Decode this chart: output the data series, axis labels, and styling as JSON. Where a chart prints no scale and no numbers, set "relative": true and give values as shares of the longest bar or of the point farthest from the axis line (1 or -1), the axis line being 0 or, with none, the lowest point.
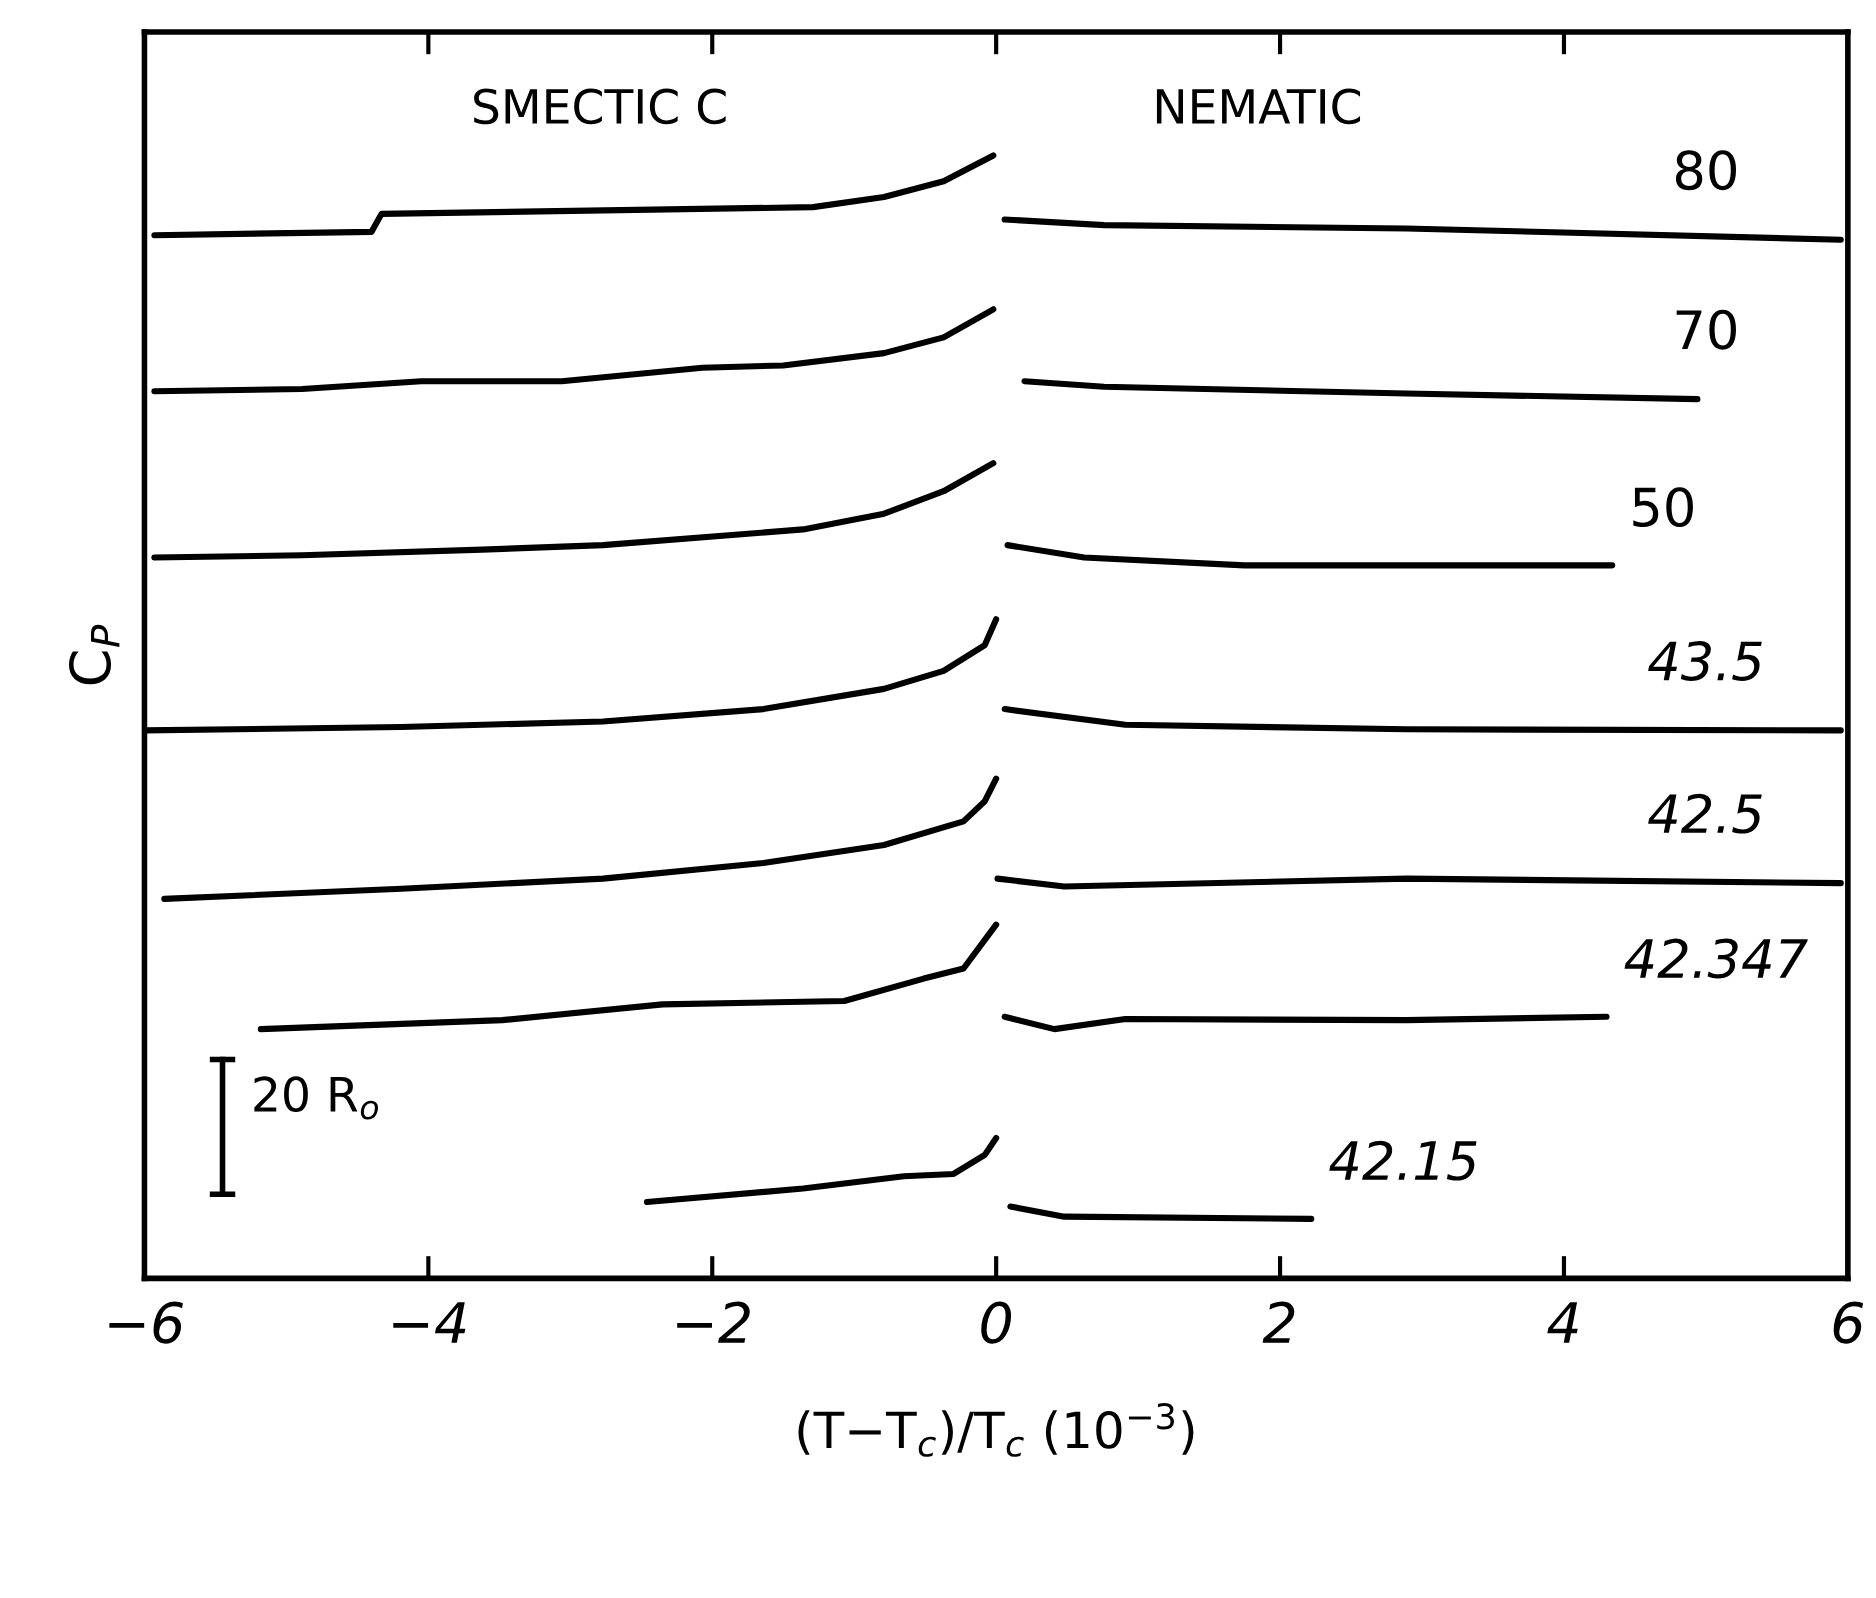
{
  "chart_data": {
    "type": "line",
    "relative": true,
    "xlabel": "(T−T$_{c}$)/T$_{c}$ (10$^{−3}$)",
    "ylabel": "C$_{P}$",
    "xlim": [
      -6,
      6
    ],
    "xticks": [
      {
        "value": -6,
        "label": "−6"
      },
      {
        "value": -4,
        "label": "−4"
      },
      {
        "value": -2,
        "label": "−2"
      },
      0,
      2,
      4,
      6
    ],
    "grid": false,
    "legend": false,
    "marker": "none",
    "line_style": "solid",
    "annotations": [
      "SMECTIC C",
      "NEMATIC",
      "20 R$_{o}$"
    ],
    "series": [
      {
        "name": "80",
        "color": "#000000",
        "x": [
          -5.93,
          -4.4,
          -4.33,
          -1.29,
          -0.79,
          -0.37,
          -0.02,
          0.02,
          0.06,
          0.76,
          2.89,
          5.95
        ],
        "values": [
          0.929,
          0.932,
          0.948,
          0.954,
          0.963,
          0.977,
          1.0,
          null,
          0.943,
          0.938,
          0.935,
          0.925
        ]
      },
      {
        "name": "70",
        "color": "#000000",
        "x": [
          -5.93,
          -4.89,
          -4.05,
          -3.06,
          -2.07,
          -1.5,
          -0.79,
          -0.37,
          -0.02,
          0.1,
          0.2,
          0.76,
          2.89,
          4.94
        ],
        "values": [
          0.79,
          0.792,
          0.799,
          0.799,
          0.811,
          0.813,
          0.824,
          0.838,
          0.863,
          null,
          0.799,
          0.794,
          0.788,
          0.783
        ]
      },
      {
        "name": "50",
        "color": "#000000",
        "x": [
          -5.93,
          -4.89,
          -3.62,
          -2.77,
          -1.36,
          -0.79,
          -0.37,
          -0.02,
          0.04,
          0.08,
          0.62,
          1.75,
          2.89,
          4.34
        ],
        "values": [
          0.642,
          0.644,
          0.649,
          0.653,
          0.667,
          0.681,
          0.701,
          0.726,
          null,
          0.653,
          0.642,
          0.635,
          0.635,
          0.635
        ]
      },
      {
        "name": "43.5",
        "color": "#000000",
        "x": [
          -6.0,
          -4.19,
          -2.77,
          -1.64,
          -0.79,
          -0.37,
          -0.08,
          0.0,
          0.03,
          0.06,
          0.91,
          2.89,
          5.95
        ],
        "values": [
          0.488,
          0.491,
          0.496,
          0.507,
          0.525,
          0.541,
          0.564,
          0.587,
          null,
          0.507,
          0.493,
          0.489,
          0.488
        ]
      },
      {
        "name": "42.5",
        "color": "#000000",
        "x": [
          -5.86,
          -4.19,
          -2.77,
          -1.64,
          -0.79,
          -0.23,
          -0.08,
          0.0,
          0.005,
          0.01,
          0.48,
          2.89,
          5.95
        ],
        "values": [
          0.338,
          0.347,
          0.356,
          0.37,
          0.386,
          0.407,
          0.425,
          0.445,
          null,
          0.356,
          0.349,
          0.356,
          0.352
        ]
      },
      {
        "name": "42.347",
        "color": "#000000",
        "x": [
          -5.18,
          -3.48,
          -2.35,
          -1.07,
          -0.51,
          -0.23,
          0.0,
          0.03,
          0.06,
          0.41,
          0.91,
          2.89,
          4.3
        ],
        "values": [
          0.222,
          0.23,
          0.244,
          0.247,
          0.267,
          0.276,
          0.315,
          null,
          0.233,
          0.222,
          0.231,
          0.23,
          0.233
        ]
      },
      {
        "name": "42.15",
        "color": "#000000",
        "x": [
          -2.46,
          -1.36,
          -0.65,
          -0.3,
          -0.08,
          0.0,
          0.05,
          0.1,
          0.48,
          2.22
        ],
        "values": [
          0.068,
          0.08,
          0.091,
          0.093,
          0.11,
          0.125,
          null,
          0.064,
          0.055,
          0.053
        ]
      }
    ]
  }
}
